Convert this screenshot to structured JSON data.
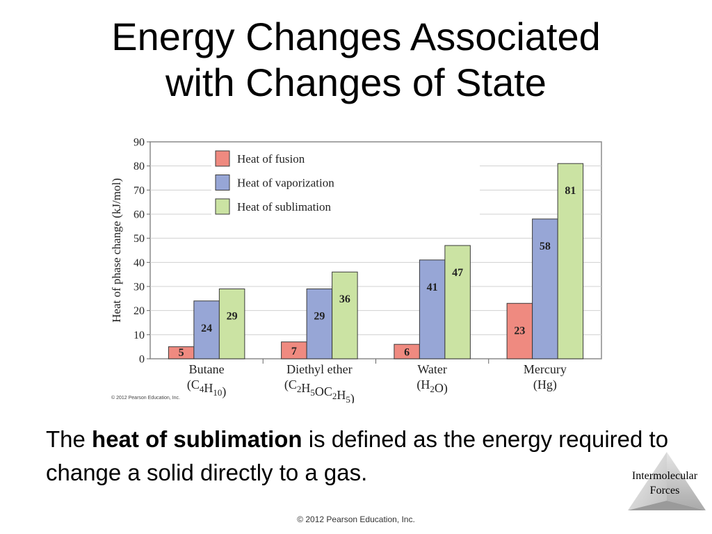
{
  "slide": {
    "title_line1": "Energy Changes Associated",
    "title_line2": "with Changes of State",
    "caption_before": "The ",
    "caption_bold": "heat of sublimation",
    "caption_after": " is defined as the energy required to change a solid directly to a gas.",
    "corner_line1": "Intermolecular",
    "corner_line2": "Forces",
    "footer": "© 2012 Pearson Education, Inc."
  },
  "chart_data": {
    "type": "bar",
    "ylabel": "Heat of phase change (kJ/mol)",
    "ylim": [
      0,
      90
    ],
    "yticks": [
      0,
      10,
      20,
      30,
      40,
      50,
      60,
      70,
      80,
      90
    ],
    "grid": true,
    "legend_position": "top-left",
    "copyright": "© 2012 Pearson Education, Inc.",
    "categories": [
      {
        "name": "Butane",
        "formula": [
          [
            "(C",
            ""
          ],
          [
            "4",
            "sub"
          ],
          [
            "H",
            ""
          ],
          [
            "10",
            "sub"
          ],
          [
            ")",
            ""
          ]
        ]
      },
      {
        "name": "Diethyl ether",
        "formula": [
          [
            "(C",
            ""
          ],
          [
            "2",
            "sub"
          ],
          [
            "H",
            ""
          ],
          [
            "5",
            "sub"
          ],
          [
            "OC",
            ""
          ],
          [
            "2",
            "sub"
          ],
          [
            "H",
            ""
          ],
          [
            "5",
            "sub"
          ],
          [
            ")",
            ""
          ]
        ]
      },
      {
        "name": "Water",
        "formula": [
          [
            "(H",
            ""
          ],
          [
            "2",
            "sub"
          ],
          [
            "O)",
            ""
          ]
        ]
      },
      {
        "name": "Mercury",
        "formula": [
          [
            "(Hg)",
            ""
          ]
        ]
      }
    ],
    "series": [
      {
        "name": "Heat of fusion",
        "color": "#ef8a80",
        "values": [
          5,
          7,
          6,
          23
        ]
      },
      {
        "name": "Heat of vaporization",
        "color": "#97a6d6",
        "values": [
          24,
          29,
          41,
          58
        ]
      },
      {
        "name": "Heat of sublimation",
        "color": "#cbe3a3",
        "values": [
          29,
          36,
          47,
          81
        ]
      }
    ]
  }
}
